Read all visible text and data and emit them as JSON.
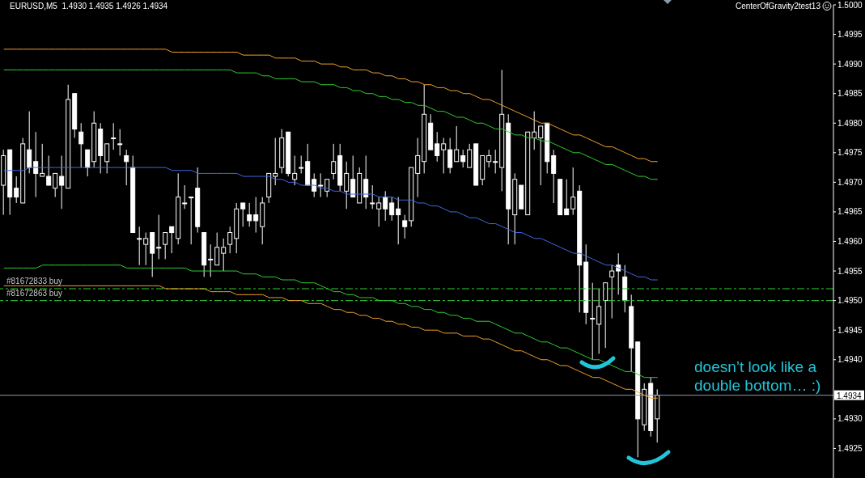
{
  "chart_data": {
    "type": "candlestick",
    "title": "EURUSD,M5  1.4930 1.4935 1.4926 1.4934",
    "subtitle": "CenterOfGravity2test13",
    "annotations": [
      "doesn’t look like a double bottom… :)"
    ],
    "categories": [
      null,
      null,
      null,
      null,
      null,
      null,
      null,
      null,
      null,
      null,
      null,
      null,
      null,
      null,
      null,
      null,
      null,
      null,
      null,
      null,
      null,
      null,
      null,
      null,
      null,
      null,
      null,
      null,
      null,
      null,
      null,
      null,
      null,
      null,
      null,
      null,
      null,
      null,
      null,
      null,
      null,
      null,
      null,
      null,
      null,
      null,
      null,
      null,
      null,
      null,
      null,
      null,
      null,
      null,
      null,
      null,
      null,
      null,
      null,
      null,
      null,
      null,
      null,
      null,
      null,
      null,
      null,
      null,
      null,
      null,
      null,
      null,
      null,
      null,
      null,
      null,
      null,
      null,
      null,
      null,
      null,
      null,
      null,
      null,
      null,
      null,
      null,
      null,
      null,
      null,
      null,
      null,
      null,
      null,
      null,
      null,
      null,
      null,
      null,
      null,
      null,
      null
    ],
    "color": "#ffffff",
    "ohlc": [
      [
        1.49695,
        1.49755,
        1.49645,
        1.49745
      ],
      [
        1.49755,
        1.49755,
        1.49645,
        1.49675
      ],
      [
        1.4969,
        1.4971,
        1.49665,
        1.49675
      ],
      [
        1.49665,
        1.49775,
        1.49665,
        1.49765
      ],
      [
        1.49755,
        1.4982,
        1.49715,
        1.49725
      ],
      [
        1.49735,
        1.49785,
        1.49675,
        1.49715
      ],
      [
        1.4971,
        1.49765,
        1.4971,
        1.49715
      ],
      [
        1.4971,
        1.49745,
        1.49695,
        1.49695
      ],
      [
        1.4969,
        1.49715,
        1.49675,
        1.49715
      ],
      [
        1.4971,
        1.49745,
        1.49655,
        1.49695
      ],
      [
        1.4969,
        1.49865,
        1.4969,
        1.4984
      ],
      [
        1.4985,
        1.4985,
        1.49775,
        1.4979
      ],
      [
        1.49785,
        1.498,
        1.49725,
        1.49765
      ],
      [
        1.49755,
        1.49755,
        1.4971,
        1.49725
      ],
      [
        1.49735,
        1.4982,
        1.49725,
        1.498
      ],
      [
        1.4979,
        1.498,
        1.49715,
        1.49745
      ],
      [
        1.49735,
        1.49765,
        1.49715,
        1.49765
      ],
      [
        1.49775,
        1.498,
        1.49755,
        1.49775
      ],
      [
        1.49765,
        1.4979,
        1.49745,
        1.49765
      ],
      [
        1.49745,
        1.49755,
        1.49695,
        1.49735
      ],
      [
        1.49725,
        1.49745,
        1.49615,
        1.49615
      ],
      [
        1.49605,
        1.49625,
        1.4956,
        1.49605
      ],
      [
        1.49595,
        1.49615,
        1.4956,
        1.49605
      ],
      [
        1.49615,
        1.49615,
        1.4954,
        1.4958
      ],
      [
        1.4959,
        1.49645,
        1.4957,
        1.4959
      ],
      [
        1.49595,
        1.49615,
        1.4957,
        1.49615
      ],
      [
        1.49625,
        1.49625,
        1.4958,
        1.49615
      ],
      [
        1.49605,
        1.49715,
        1.49595,
        1.49675
      ],
      [
        1.49665,
        1.49695,
        1.49655,
        1.49665
      ],
      [
        1.49675,
        1.49675,
        1.49595,
        1.49675
      ],
      [
        1.4969,
        1.49725,
        1.49615,
        1.49625
      ],
      [
        1.49615,
        1.49615,
        1.4954,
        1.4956
      ],
      [
        1.4957,
        1.49595,
        1.4954,
        1.4957
      ],
      [
        1.4956,
        1.49615,
        1.4956,
        1.4959
      ],
      [
        1.4958,
        1.49605,
        1.4955,
        1.4959
      ],
      [
        1.49595,
        1.49625,
        1.4958,
        1.49615
      ],
      [
        1.49605,
        1.49665,
        1.4958,
        1.49655
      ],
      [
        1.49665,
        1.49665,
        1.49625,
        1.49655
      ],
      [
        1.49645,
        1.49665,
        1.49625,
        1.49635
      ],
      [
        1.49645,
        1.49675,
        1.49615,
        1.49635
      ],
      [
        1.49625,
        1.49675,
        1.49595,
        1.49665
      ],
      [
        1.49675,
        1.49715,
        1.49665,
        1.49715
      ],
      [
        1.4971,
        1.49775,
        1.49695,
        1.49715
      ],
      [
        1.49725,
        1.4979,
        1.49715,
        1.49775
      ],
      [
        1.49785,
        1.49785,
        1.4971,
        1.49715
      ],
      [
        1.49705,
        1.49745,
        1.49695,
        1.49715
      ],
      [
        1.49725,
        1.49745,
        1.49715,
        1.49725
      ],
      [
        1.49735,
        1.49765,
        1.49695,
        1.49695
      ],
      [
        1.49705,
        1.49715,
        1.49675,
        1.49685
      ],
      [
        1.49695,
        1.49715,
        1.49675,
        1.49695
      ],
      [
        1.49685,
        1.49705,
        1.49675,
        1.49705
      ],
      [
        1.49715,
        1.49765,
        1.49705,
        1.49735
      ],
      [
        1.49745,
        1.49765,
        1.49685,
        1.49695
      ],
      [
        1.49685,
        1.49735,
        1.49655,
        1.49715
      ],
      [
        1.49705,
        1.49745,
        1.49675,
        1.49675
      ],
      [
        1.49665,
        1.49725,
        1.49665,
        1.49715
      ],
      [
        1.49705,
        1.49745,
        1.49655,
        1.49675
      ],
      [
        1.49665,
        1.49695,
        1.49655,
        1.49665
      ],
      [
        1.49655,
        1.49675,
        1.49625,
        1.49665
      ],
      [
        1.49675,
        1.49685,
        1.49635,
        1.49655
      ],
      [
        1.49665,
        1.49675,
        1.49635,
        1.49645
      ],
      [
        1.49655,
        1.49675,
        1.49595,
        1.49645
      ],
      [
        1.49635,
        1.49645,
        1.49605,
        1.49625
      ],
      [
        1.49635,
        1.49725,
        1.49625,
        1.49725
      ],
      [
        1.49715,
        1.49775,
        1.49675,
        1.49745
      ],
      [
        1.49735,
        1.49865,
        1.49715,
        1.49815
      ],
      [
        1.498,
        1.49815,
        1.49755,
        1.49755
      ],
      [
        1.49765,
        1.49785,
        1.49735,
        1.49745
      ],
      [
        1.49755,
        1.49775,
        1.49715,
        1.49765
      ],
      [
        1.49755,
        1.49775,
        1.49715,
        1.49725
      ],
      [
        1.49735,
        1.49795,
        1.49735,
        1.49755
      ],
      [
        1.49745,
        1.49755,
        1.49725,
        1.49735
      ],
      [
        1.49725,
        1.49765,
        1.49725,
        1.49755
      ],
      [
        1.49765,
        1.49765,
        1.49695,
        1.49695
      ],
      [
        1.49705,
        1.49745,
        1.49695,
        1.49745
      ],
      [
        1.49735,
        1.49755,
        1.49725,
        1.49745
      ],
      [
        1.49735,
        1.49755,
        1.49715,
        1.49735
      ],
      [
        1.49725,
        1.4989,
        1.49685,
        1.49815
      ],
      [
        1.498,
        1.49815,
        1.49595,
        1.49655
      ],
      [
        1.49645,
        1.49715,
        1.49595,
        1.49705
      ],
      [
        1.49695,
        1.49695,
        1.49655,
        1.49655
      ],
      [
        1.49645,
        1.49785,
        1.49645,
        1.49785
      ],
      [
        1.49775,
        1.4982,
        1.49755,
        1.49785
      ],
      [
        1.49775,
        1.49795,
        1.49695,
        1.49795
      ],
      [
        1.498,
        1.498,
        1.49715,
        1.49735
      ],
      [
        1.49745,
        1.49755,
        1.49665,
        1.49715
      ],
      [
        1.49705,
        1.49705,
        1.49645,
        1.49645
      ],
      [
        1.49655,
        1.49705,
        1.49645,
        1.49645
      ],
      [
        1.49655,
        1.49725,
        1.49645,
        1.49675
      ],
      [
        1.49685,
        1.49695,
        1.4948,
        1.4956
      ],
      [
        1.49565,
        1.49595,
        1.4946,
        1.4948
      ],
      [
        1.4947,
        1.4953,
        1.494,
        1.4947
      ],
      [
        1.4946,
        1.4952,
        1.4941,
        1.4949
      ],
      [
        1.495,
        1.4953,
        1.4942,
        1.4953
      ],
      [
        1.4954,
        1.4956,
        1.4947,
        1.4955
      ],
      [
        1.4956,
        1.4958,
        1.4951,
        1.4955
      ],
      [
        1.4954,
        1.4956,
        1.4948,
        1.495
      ],
      [
        1.4949,
        1.4951,
        1.4938,
        1.4942
      ],
      [
        1.4943,
        1.4943,
        1.49235,
        1.493
      ],
      [
        1.4929,
        1.4936,
        1.4928,
        1.4935
      ],
      [
        1.4936,
        1.4937,
        1.4927,
        1.4928
      ],
      [
        1.493,
        1.4935,
        1.4926,
        1.4934
      ]
    ],
    "series": [
      {
        "type": "line",
        "color": "#f0a030",
        "values": [
          1.49925,
          1.49925,
          1.49925,
          1.49925,
          1.49925,
          1.49925,
          1.49925,
          1.49925,
          1.49925,
          1.49925,
          1.49925,
          1.49925,
          1.49925,
          1.49925,
          1.49925,
          1.49925,
          1.49925,
          1.49925,
          1.49925,
          1.49925,
          1.49925,
          1.49925,
          1.49925,
          1.49925,
          1.49925,
          1.49925,
          1.4992,
          1.4992,
          1.4992,
          1.4992,
          1.4992,
          1.4992,
          1.4992,
          1.4992,
          1.4992,
          1.4992,
          1.4992,
          1.49915,
          1.49915,
          1.49915,
          1.49915,
          1.49915,
          1.4991,
          1.4991,
          1.4991,
          1.4991,
          1.49905,
          1.49905,
          1.49905,
          1.499,
          1.499,
          1.499,
          1.49895,
          1.49895,
          1.4989,
          1.4989,
          1.4989,
          1.49885,
          1.49885,
          1.4988,
          1.4988,
          1.49875,
          1.49875,
          1.4987,
          1.4987,
          1.49865,
          1.49865,
          1.4986,
          1.4986,
          1.49855,
          1.49855,
          1.4985,
          1.4985,
          1.49845,
          1.4984,
          1.4984,
          1.49835,
          1.4983,
          1.49825,
          1.4982,
          1.49815,
          1.4981,
          1.49805,
          1.498,
          1.498,
          1.49795,
          1.4979,
          1.49785,
          1.4978,
          1.4978,
          1.49775,
          1.4977,
          1.49765,
          1.4976,
          1.4976,
          1.49755,
          1.4975,
          1.49745,
          1.4974,
          1.4974,
          1.49735,
          1.49735
        ]
      },
      {
        "type": "line",
        "color": "#32cd32",
        "values": [
          1.4989,
          1.4989,
          1.4989,
          1.4989,
          1.4989,
          1.4989,
          1.4989,
          1.4989,
          1.4989,
          1.4989,
          1.4989,
          1.4989,
          1.4989,
          1.4989,
          1.4989,
          1.4989,
          1.4989,
          1.4989,
          1.4989,
          1.4989,
          1.4989,
          1.4989,
          1.4989,
          1.4989,
          1.4989,
          1.4989,
          1.4989,
          1.4989,
          1.4989,
          1.4989,
          1.4989,
          1.4989,
          1.4989,
          1.4989,
          1.4989,
          1.4989,
          1.49885,
          1.49885,
          1.49885,
          1.49885,
          1.4988,
          1.4988,
          1.49875,
          1.49875,
          1.49875,
          1.49875,
          1.4987,
          1.4987,
          1.4987,
          1.49865,
          1.49865,
          1.49865,
          1.4986,
          1.4986,
          1.49855,
          1.49855,
          1.4985,
          1.4985,
          1.49845,
          1.49845,
          1.4984,
          1.4984,
          1.49835,
          1.49835,
          1.4983,
          1.4983,
          1.49825,
          1.4982,
          1.4982,
          1.49815,
          1.4981,
          1.4981,
          1.49805,
          1.498,
          1.498,
          1.49795,
          1.4979,
          1.4979,
          1.49785,
          1.4978,
          1.4978,
          1.49775,
          1.49775,
          1.4977,
          1.4977,
          1.49765,
          1.4976,
          1.49755,
          1.4975,
          1.4975,
          1.49745,
          1.4974,
          1.49735,
          1.4973,
          1.4973,
          1.49725,
          1.4972,
          1.49715,
          1.4971,
          1.4971,
          1.49705,
          1.49705
        ]
      },
      {
        "type": "line",
        "color": "#4169e1",
        "values": [
          1.4972,
          1.4972,
          1.4972,
          1.4972,
          1.49725,
          1.49725,
          1.49725,
          1.49725,
          1.49725,
          1.49725,
          1.49725,
          1.49725,
          1.49725,
          1.49725,
          1.49725,
          1.49725,
          1.49725,
          1.49725,
          1.49725,
          1.49725,
          1.49725,
          1.49725,
          1.49725,
          1.49725,
          1.49725,
          1.49725,
          1.4972,
          1.4972,
          1.4972,
          1.4972,
          1.49715,
          1.49715,
          1.49715,
          1.49715,
          1.49715,
          1.49715,
          1.49715,
          1.4971,
          1.4971,
          1.4971,
          1.4971,
          1.4971,
          1.49705,
          1.49705,
          1.497,
          1.497,
          1.49695,
          1.49695,
          1.49695,
          1.4969,
          1.4969,
          1.49685,
          1.49685,
          1.4968,
          1.4968,
          1.4968,
          1.4968,
          1.4968,
          1.49675,
          1.49675,
          1.49675,
          1.4967,
          1.4967,
          1.4967,
          1.49665,
          1.49665,
          1.4966,
          1.4966,
          1.49655,
          1.4965,
          1.4965,
          1.49645,
          1.4964,
          1.4964,
          1.49635,
          1.4963,
          1.4963,
          1.49625,
          1.4962,
          1.49615,
          1.49615,
          1.4961,
          1.49605,
          1.49605,
          1.496,
          1.49595,
          1.4959,
          1.49585,
          1.4958,
          1.4958,
          1.49575,
          1.4957,
          1.49565,
          1.4956,
          1.4956,
          1.49555,
          1.4955,
          1.49545,
          1.4954,
          1.4954,
          1.49535,
          1.49535
        ]
      },
      {
        "type": "line",
        "color": "#32cd32",
        "values": [
          1.49555,
          1.49555,
          1.49555,
          1.49555,
          1.49555,
          1.49555,
          1.4956,
          1.4956,
          1.4956,
          1.4956,
          1.4956,
          1.4956,
          1.4956,
          1.4956,
          1.4956,
          1.4956,
          1.4956,
          1.4956,
          1.4956,
          1.49555,
          1.49555,
          1.49555,
          1.49555,
          1.49555,
          1.49555,
          1.49555,
          1.49555,
          1.49555,
          1.49555,
          1.4955,
          1.4955,
          1.4955,
          1.4955,
          1.4955,
          1.4955,
          1.4955,
          1.4955,
          1.49545,
          1.49545,
          1.49545,
          1.4954,
          1.4954,
          1.4954,
          1.49535,
          1.49535,
          1.49535,
          1.4953,
          1.4953,
          1.4953,
          1.49525,
          1.4952,
          1.49515,
          1.49515,
          1.4951,
          1.4951,
          1.49505,
          1.49505,
          1.49505,
          1.495,
          1.495,
          1.495,
          1.49495,
          1.49495,
          1.4949,
          1.4949,
          1.49485,
          1.49485,
          1.4948,
          1.4948,
          1.49475,
          1.49475,
          1.4947,
          1.4947,
          1.49465,
          1.49465,
          1.49465,
          1.4946,
          1.49455,
          1.4945,
          1.49445,
          1.49445,
          1.4944,
          1.49435,
          1.4943,
          1.4943,
          1.49425,
          1.4942,
          1.4942,
          1.49415,
          1.4941,
          1.49405,
          1.494,
          1.494,
          1.49395,
          1.4939,
          1.49385,
          1.4938,
          1.4938,
          1.49375,
          1.4937,
          1.4937,
          1.4937
        ]
      },
      {
        "type": "line",
        "color": "#f0a030",
        "values": [
          1.49525,
          1.49525,
          1.49525,
          1.49525,
          1.49525,
          1.49525,
          1.49525,
          1.49525,
          1.49525,
          1.49525,
          1.49525,
          1.49525,
          1.49525,
          1.49525,
          1.49525,
          1.49525,
          1.49525,
          1.49525,
          1.49525,
          1.49525,
          1.49525,
          1.49525,
          1.49525,
          1.49525,
          1.49525,
          1.4952,
          1.4952,
          1.4952,
          1.4952,
          1.4952,
          1.4952,
          1.4952,
          1.49515,
          1.49515,
          1.49515,
          1.49515,
          1.4951,
          1.4951,
          1.4951,
          1.4951,
          1.4951,
          1.49505,
          1.49505,
          1.49505,
          1.495,
          1.495,
          1.495,
          1.49495,
          1.49495,
          1.49495,
          1.4949,
          1.49485,
          1.49485,
          1.4948,
          1.4948,
          1.49475,
          1.49475,
          1.4947,
          1.4947,
          1.49465,
          1.49465,
          1.4946,
          1.4946,
          1.49455,
          1.49455,
          1.4945,
          1.4945,
          1.4945,
          1.49445,
          1.49445,
          1.49445,
          1.4944,
          1.4944,
          1.4944,
          1.49435,
          1.49435,
          1.4943,
          1.49425,
          1.4942,
          1.49415,
          1.49415,
          1.4941,
          1.49405,
          1.494,
          1.494,
          1.49395,
          1.4939,
          1.4939,
          1.49385,
          1.4938,
          1.49375,
          1.4937,
          1.4937,
          1.49365,
          1.4936,
          1.49355,
          1.4935,
          1.4935,
          1.49345,
          1.4934,
          1.49335,
          1.49335
        ]
      }
    ],
    "ylim": [
      1.492,
      1.5
    ],
    "yticks": [
      1.4925,
      {
        "value": 1.493,
        "label": "1.4930"
      },
      {
        "value": 1.494,
        "label": "1.4940"
      },
      1.4945,
      {
        "value": 1.495,
        "label": "1.4950"
      },
      1.4955,
      {
        "value": 1.496,
        "label": "1.4960"
      },
      1.4965,
      {
        "value": 1.497,
        "label": "1.4970"
      },
      1.4975,
      {
        "value": 1.498,
        "label": "1.4980"
      },
      1.4985,
      {
        "value": 1.499,
        "label": "1.4990"
      },
      1.4995,
      {
        "value": 1.5,
        "label": "1.5000"
      }
    ],
    "ref_lines": [
      {
        "axis": "y",
        "value": 1.4952,
        "label": "#81672833 buy",
        "color": "#32cd32",
        "line_style": "dashed"
      },
      {
        "axis": "y",
        "value": 1.495,
        "label": "#81672863 buy",
        "color": "#32cd32",
        "line_style": "dashed"
      },
      {
        "axis": "y",
        "value": 1.4934,
        "label": "1.4934",
        "color": "#8a9aac",
        "line_style": "solid"
      }
    ]
  }
}
